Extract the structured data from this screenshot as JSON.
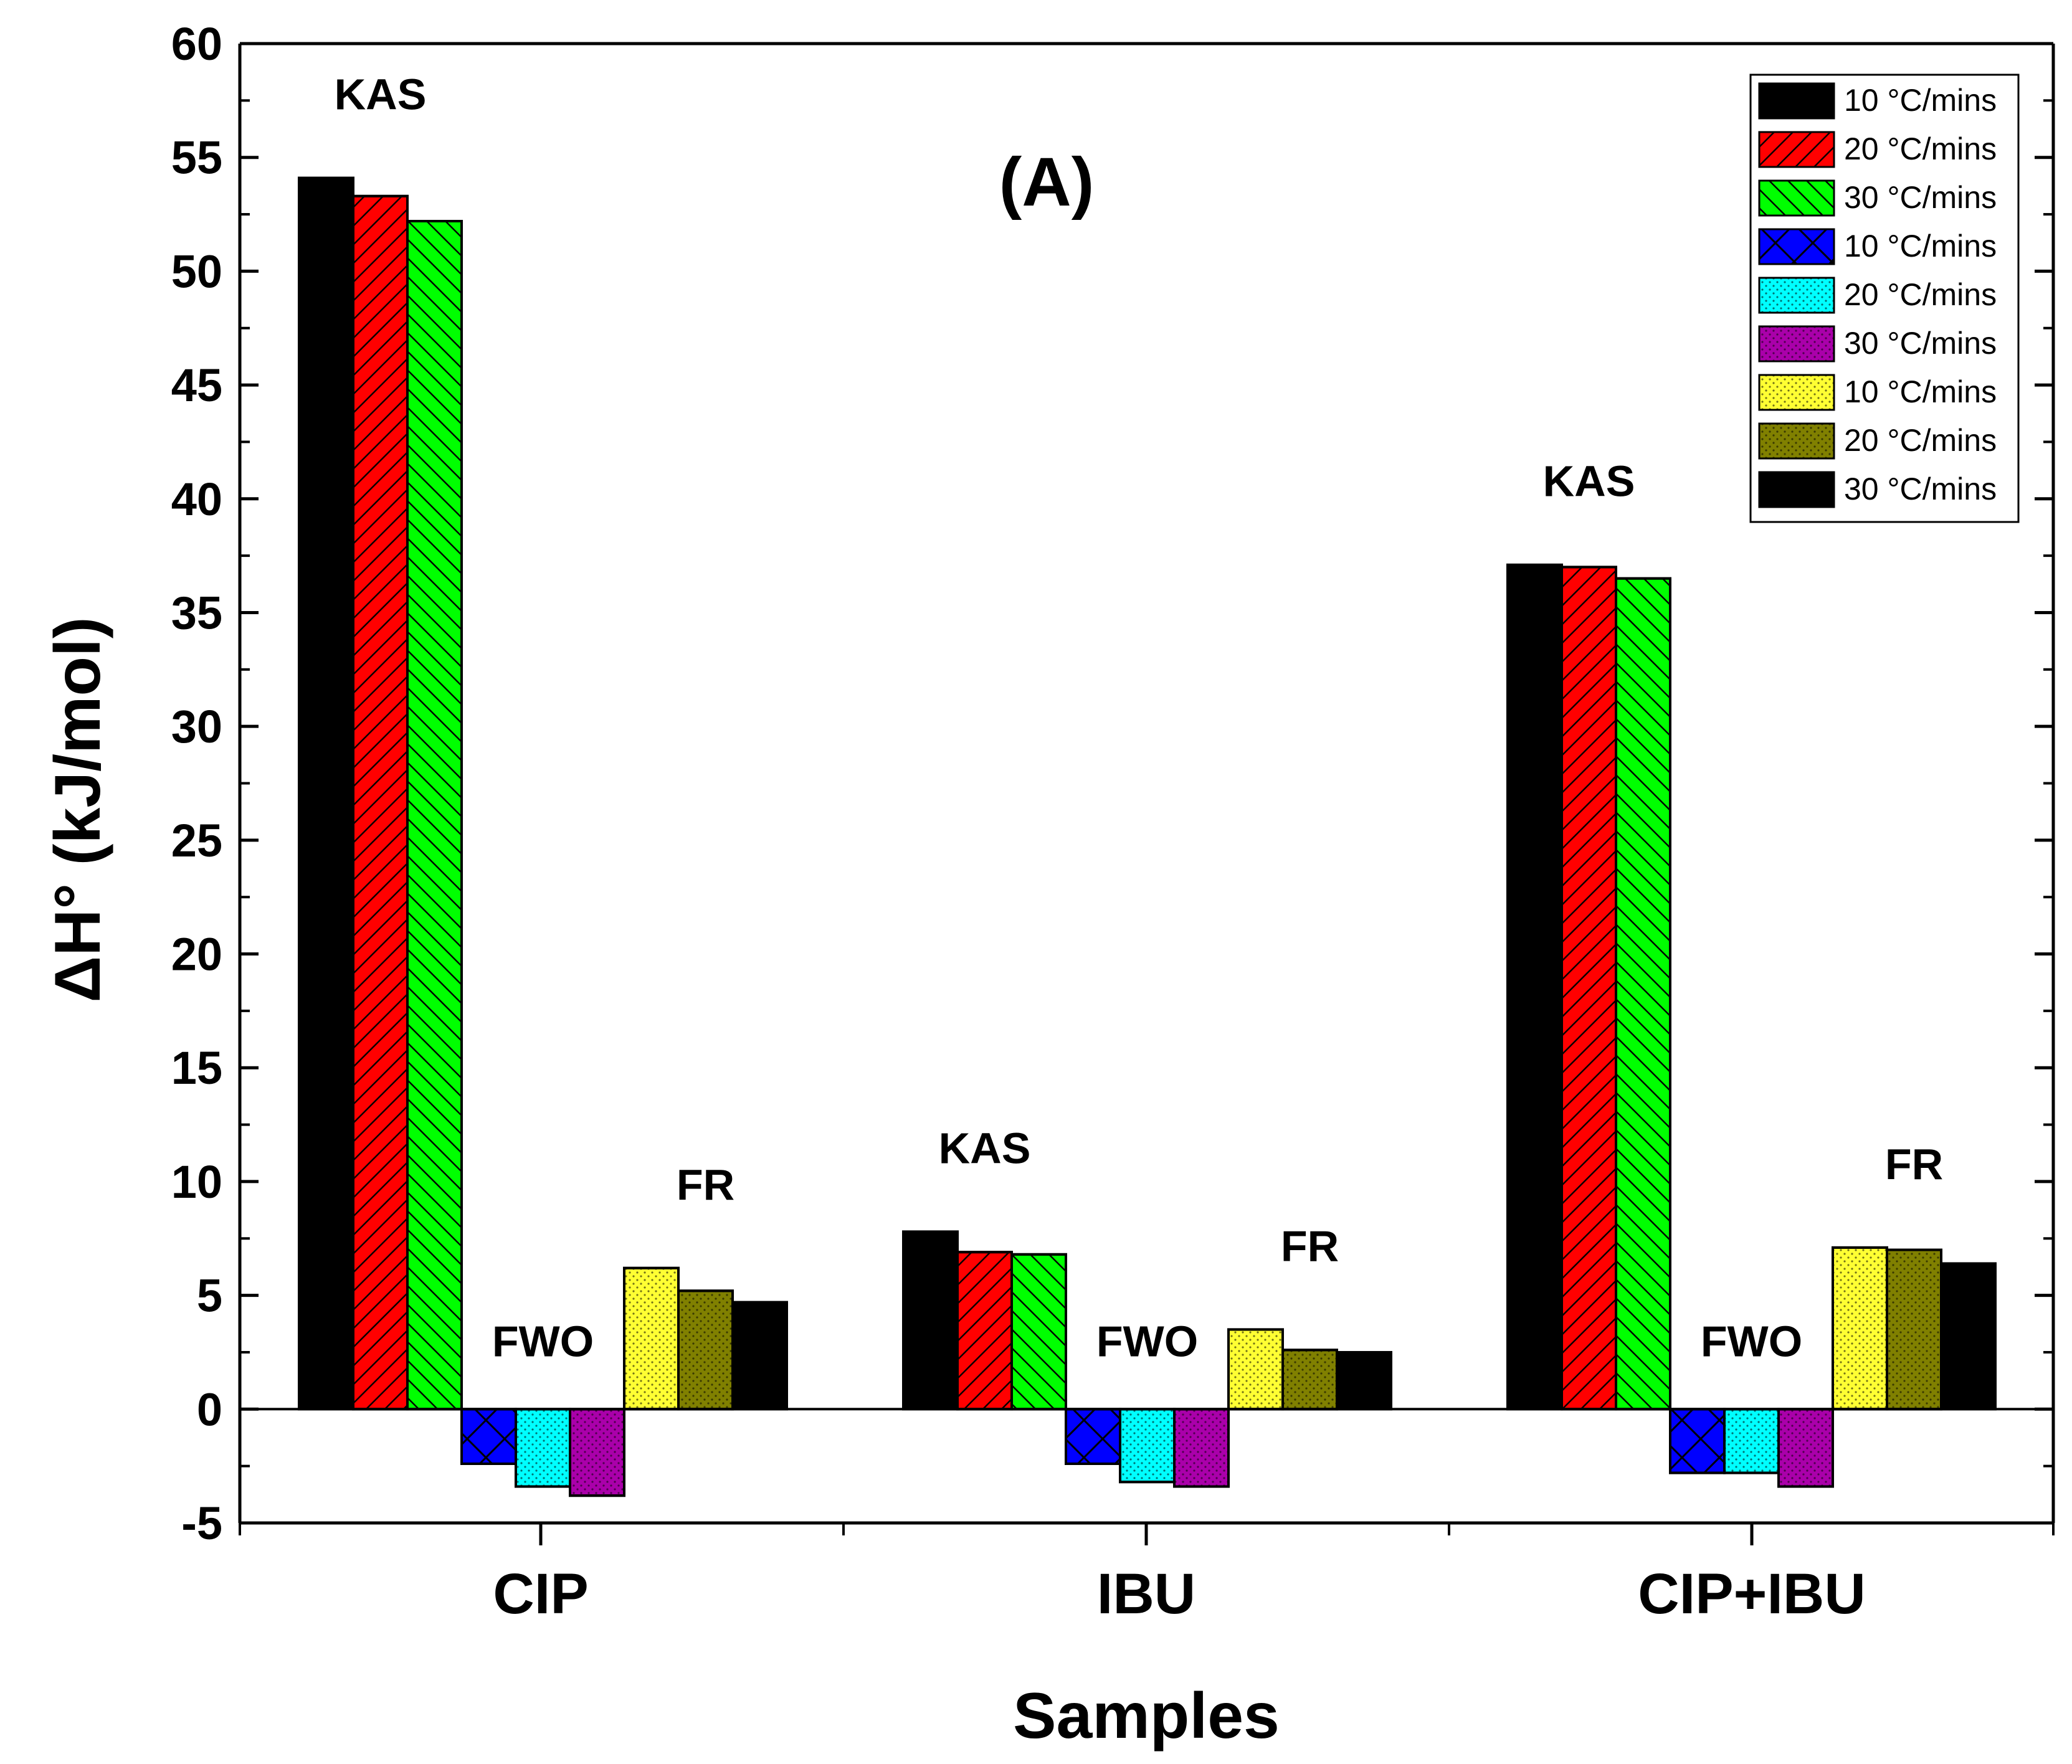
{
  "chart_data": {
    "type": "bar",
    "panel_label": "(A)",
    "xlabel": "Samples",
    "ylabel": "ΔH° (kJ/mol)",
    "ylim": [
      -5,
      60
    ],
    "yticks": [
      "-5",
      "0",
      "5",
      "10",
      "15",
      "20",
      "25",
      "30",
      "35",
      "40",
      "45",
      "50",
      "55",
      "60"
    ],
    "categories": [
      "CIP",
      "IBU",
      "CIP+IBU"
    ],
    "methods": [
      "KAS",
      "FWO",
      "FR"
    ],
    "series": [
      {
        "name": "10 °C/mins",
        "method": "KAS",
        "color": "#000000",
        "pattern": "solid",
        "values": [
          54.1,
          7.8,
          37.1
        ]
      },
      {
        "name": "20 °C/mins",
        "method": "KAS",
        "color": "#ff0000",
        "pattern": "fdiag",
        "values": [
          53.3,
          6.9,
          37.0
        ]
      },
      {
        "name": "30 °C/mins",
        "method": "KAS",
        "color": "#00ff00",
        "pattern": "bdiag",
        "values": [
          52.2,
          6.8,
          36.5
        ]
      },
      {
        "name": "10 °C/mins",
        "method": "FWO",
        "color": "#0000ff",
        "pattern": "crosshatch",
        "values": [
          -2.4,
          -2.4,
          -2.8
        ]
      },
      {
        "name": "20 °C/mins",
        "method": "FWO",
        "color": "#00ffff",
        "pattern": "dots",
        "values": [
          -3.4,
          -3.2,
          -2.8
        ]
      },
      {
        "name": "30 °C/mins",
        "method": "FWO",
        "color": "#aa00aa",
        "pattern": "dots",
        "values": [
          -3.8,
          -3.4,
          -3.4
        ]
      },
      {
        "name": "10 °C/mins",
        "method": "FR",
        "color": "#ffff33",
        "pattern": "dots",
        "values": [
          6.2,
          3.5,
          7.1
        ]
      },
      {
        "name": "20 °C/mins",
        "method": "FR",
        "color": "#808000",
        "pattern": "dots",
        "values": [
          5.2,
          2.6,
          7.0
        ]
      },
      {
        "name": "30 °C/mins",
        "method": "FR",
        "color": "#000000",
        "pattern": "solid",
        "values": [
          4.7,
          2.5,
          6.4
        ]
      }
    ]
  }
}
